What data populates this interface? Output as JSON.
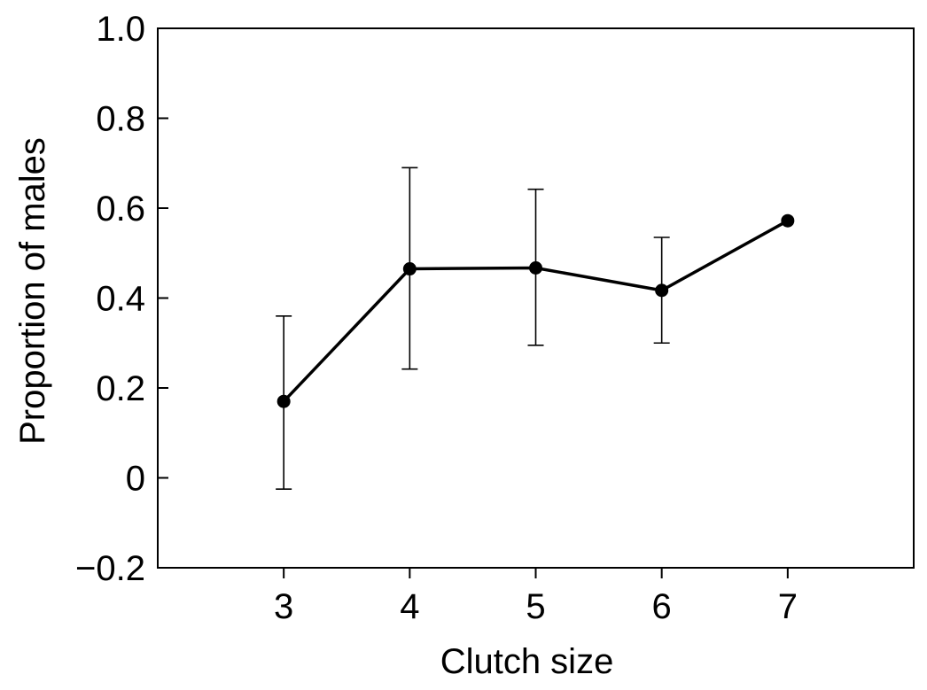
{
  "chart_data": {
    "type": "line",
    "title": "",
    "xlabel": "Clutch size",
    "ylabel": "Proportion of males",
    "xlim": [
      2,
      8
    ],
    "ylim": [
      -0.2,
      1.0
    ],
    "x_ticks": [
      3,
      4,
      5,
      6,
      7
    ],
    "x_tick_labels": [
      "3",
      "4",
      "5",
      "6",
      "7"
    ],
    "y_ticks": [
      -0.2,
      0,
      0.2,
      0.4,
      0.6,
      0.8,
      1.0
    ],
    "y_tick_labels": [
      "−0.2",
      "0",
      "0.2",
      "0.4",
      "0.6",
      "0.8",
      "1.0"
    ],
    "grid": false,
    "legend": "none",
    "colors": {
      "line": "#000000",
      "marker": "#000000",
      "frame": "#000000"
    },
    "series": [
      {
        "x": [
          3,
          4,
          5,
          6,
          7
        ],
        "values": [
          0.17,
          0.465,
          0.467,
          0.417,
          0.572
        ],
        "error_low": [
          -0.025,
          0.242,
          0.295,
          0.3,
          null
        ],
        "error_high": [
          0.36,
          0.69,
          0.642,
          0.535,
          null
        ]
      }
    ]
  }
}
